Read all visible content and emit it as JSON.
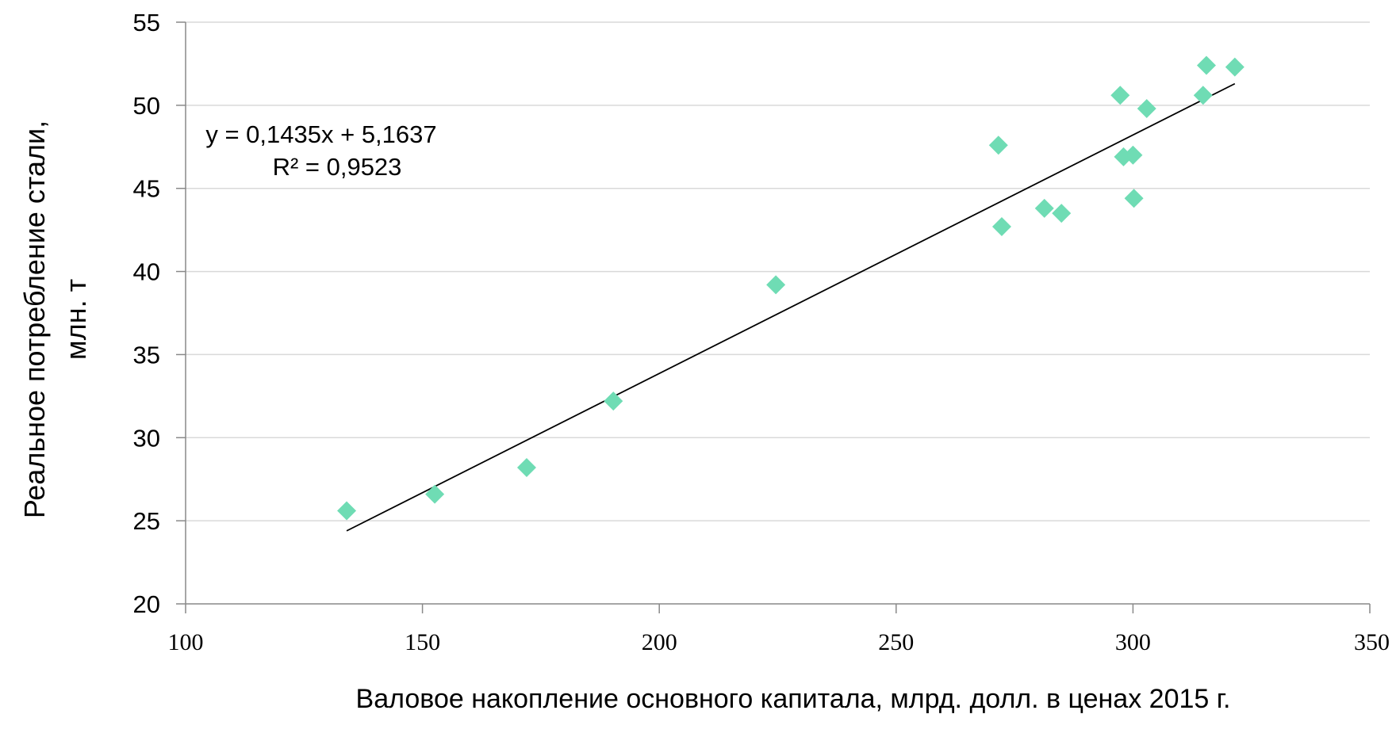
{
  "chart_data": {
    "type": "scatter",
    "title": "",
    "xlabel": "Валовое накопление основного капитала, млрд. долл. в ценах 2015 г.",
    "ylabel_lines": [
      "Реальное потребление стали,",
      "млн. т"
    ],
    "xlim": [
      100,
      350
    ],
    "ylim": [
      20,
      55
    ],
    "x_ticks": [
      "100",
      "150",
      "200",
      "250",
      "300",
      "350"
    ],
    "y_ticks": [
      "20",
      "25",
      "30",
      "35",
      "40",
      "45",
      "50",
      "55"
    ],
    "x_tick_values": [
      100,
      150,
      200,
      250,
      300,
      350
    ],
    "y_tick_values": [
      20,
      25,
      30,
      35,
      40,
      45,
      50,
      55
    ],
    "horizontal_grid": true,
    "marker_color": "#6fdcb4",
    "series": [
      {
        "points": [
          {
            "x": 134,
            "y": 25.6
          },
          {
            "x": 152.6,
            "y": 26.6
          },
          {
            "x": 172,
            "y": 28.2
          },
          {
            "x": 190.3,
            "y": 32.2
          },
          {
            "x": 224.6,
            "y": 39.2
          },
          {
            "x": 271.6,
            "y": 47.6
          },
          {
            "x": 272.3,
            "y": 42.7
          },
          {
            "x": 281.3,
            "y": 43.8
          },
          {
            "x": 284.9,
            "y": 43.5
          },
          {
            "x": 297.3,
            "y": 50.6
          },
          {
            "x": 298,
            "y": 46.9
          },
          {
            "x": 300,
            "y": 47
          },
          {
            "x": 300.2,
            "y": 44.4
          },
          {
            "x": 302.9,
            "y": 49.8
          },
          {
            "x": 314.8,
            "y": 50.6
          },
          {
            "x": 315.5,
            "y": 52.4
          },
          {
            "x": 321.5,
            "y": 52.3
          }
        ]
      }
    ],
    "trendline": {
      "slope": 0.1435,
      "intercept": 5.1637,
      "x_range": [
        134,
        321.5
      ],
      "equation_label": "y = 0,1435x + 5,1637",
      "r2_label": "R² = 0,9523",
      "color": "#000000"
    }
  }
}
